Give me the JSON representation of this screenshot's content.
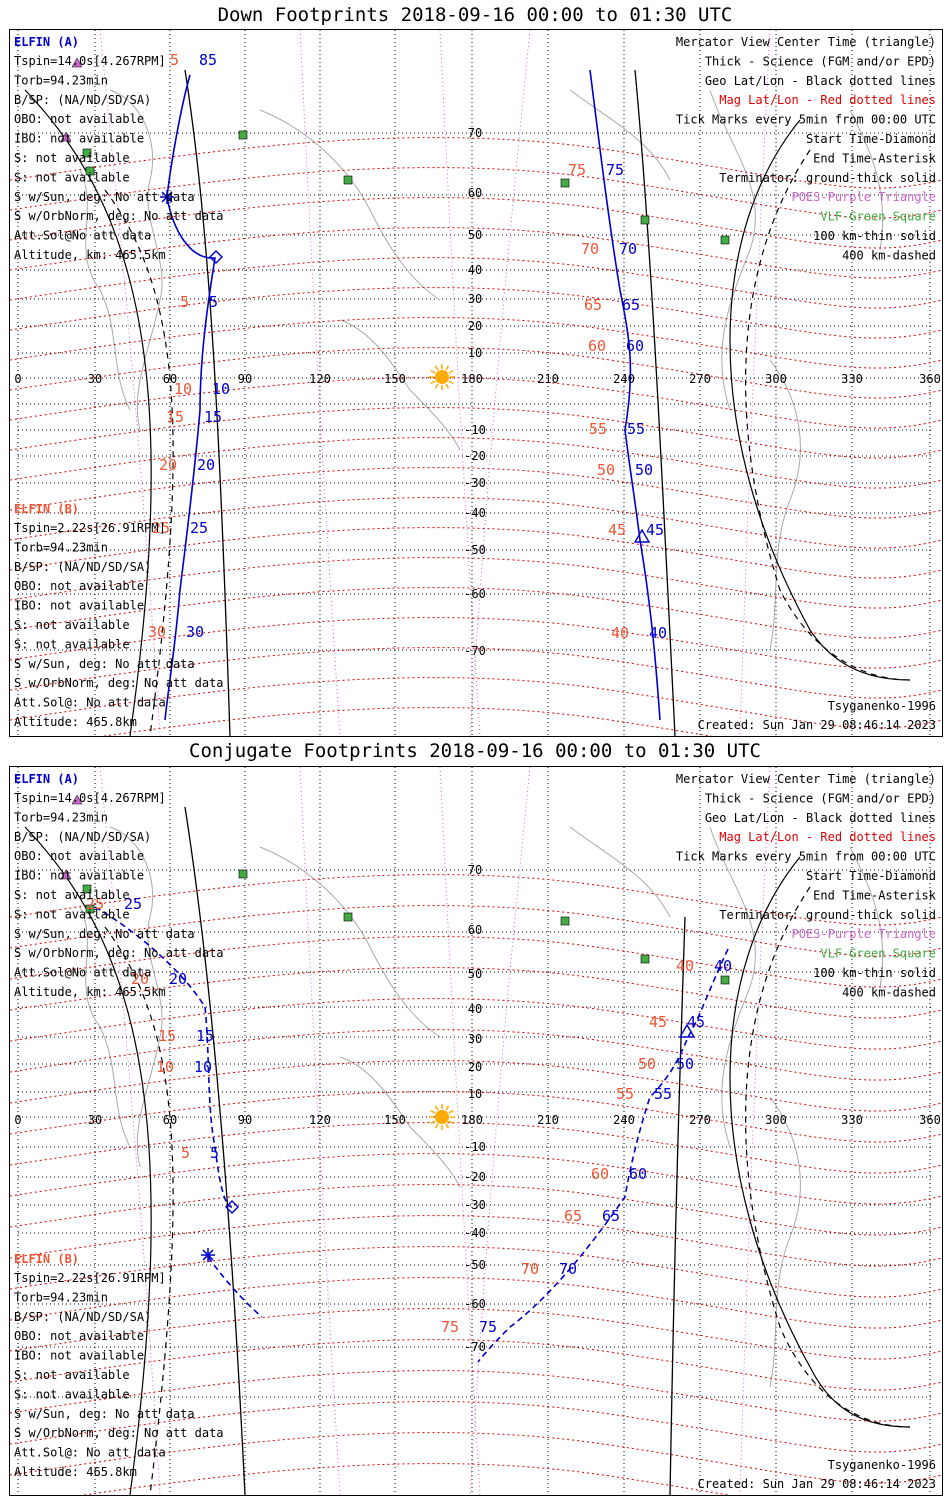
{
  "colors": {
    "blue": "#0000cc",
    "orange": "#ee5533",
    "red": "#dd0000",
    "green": "#44aa44",
    "purple": "#cc66cc",
    "sun": "#ffaa00"
  },
  "panels": [
    {
      "title": "Down Footprints 2018-09-16 00:00 to 01:30 UTC",
      "left_a": {
        "name": "ELFIN (A)",
        "lines": [
          "Tspin=14.0s[4.267RPM]",
          "Torb=94.23min",
          "B/SP: (NA/ND/SD/SA)",
          "OBO: not available",
          "IBO: not available",
          "S: not available",
          "S: not available",
          "S w/Sun, deg: No att data",
          "S w/OrbNorm, deg: No att data",
          "Att.Sol@No att data",
          "Altitude, km: 465.5km"
        ]
      },
      "left_b": {
        "name": "ELFIN (B)",
        "lines": [
          "Tspin=2.22s[26.91RPM]",
          "Torb=94.23min",
          "B/SP: (NA/ND/SD/SA)",
          "OBO: not available",
          "IBO: not available",
          "S: not available",
          "S: not available",
          "S w/Sun, deg: No att data",
          "S w/OrbNorm, deg: No att data",
          "Att.Sol@: No att data",
          "Altitude: 465.8km"
        ]
      },
      "legend": [
        "Mercator View Center Time (triangle)",
        "Thick - Science (FGM and/or EPD)",
        "Geo Lat/Lon - Black dotted lines",
        "Mag Lat/Lon - Red dotted lines",
        "Tick Marks every 5min from 00:00 UTC",
        "Start Time-Diamond",
        "End Time-Asterisk",
        "Terminator: ground-thick solid",
        "POES-Purple Triangle",
        "VLF-Green Square",
        "100 km-thin solid",
        "400 km-dashed"
      ],
      "model": "Tsyganenko-1996",
      "created": "Created: Sun Jan 29 08:46:14 2023"
    },
    {
      "title": "Conjugate Footprints 2018-09-16 00:00 to 01:30 UTC",
      "left_a": {
        "name": "ELFIN (A)",
        "lines": [
          "Tspin=14.0s[4.267RPM]",
          "Torb=94.23min",
          "B/SP: (NA/ND/SD/SA)",
          "OBO: not available",
          "IBO: not available",
          "S: not available",
          "S: not available",
          "S w/Sun, deg: No att data",
          "S w/OrbNorm, deg: No att data",
          "Att.Sol@No att data",
          "Altitude, km: 465.5km"
        ]
      },
      "left_b": {
        "name": "ELFIN (B)",
        "lines": [
          "Tspin=2.22s[26.91RPM]",
          "Torb=94.23min",
          "B/SP: (NA/ND/SD/SA)",
          "OBO: not available",
          "IBO: not available",
          "S: not available",
          "S: not available",
          "S w/Sun, deg: No att data",
          "S w/OrbNorm, deg: No att data",
          "Att.Sol@: No att data",
          "Altitude: 465.8km"
        ]
      },
      "legend": [
        "Mercator View Center Time (triangle)",
        "Thick - Science (FGM and/or EPD)",
        "Geo Lat/Lon - Black dotted lines",
        "Mag Lat/Lon - Red dotted lines",
        "Tick Marks every 5min from 00:00 UTC",
        "Start Time-Diamond",
        "End Time-Asterisk",
        "Terminator: ground-thick solid",
        "POES-Purple Triangle",
        "VLF-Green Square",
        "100 km-thin solid",
        "400 km-dashed"
      ],
      "model": "Tsyganenko-1996",
      "created": "Created: Sun Jan 29 08:46:14 2023"
    }
  ],
  "lon_labels": [
    "0",
    "30",
    "60",
    "90",
    "120",
    "150",
    "180",
    "210",
    "240",
    "270",
    "300",
    "330",
    "360"
  ],
  "lat_labels": [
    "70",
    "60",
    "50",
    "40",
    "30",
    "20",
    "10",
    "-10",
    "-20",
    "-30",
    "-40",
    "-50",
    "-60",
    "-70"
  ],
  "down_ticks_a": [
    "85",
    "5",
    "10",
    "15",
    "20",
    "25",
    "30"
  ],
  "down_ticks_b": [
    "75",
    "70",
    "65",
    "60",
    "55",
    "50",
    "45",
    "40"
  ],
  "down_ticks_a_orange": [
    "5",
    "5",
    "10",
    "15",
    "20",
    "25",
    "30"
  ],
  "down_ticks_b_orange": [
    "75",
    "70",
    "65",
    "60",
    "55",
    "50",
    "45",
    "40"
  ],
  "conj_ticks_a": [
    "25",
    "20",
    "15",
    "10",
    "5"
  ],
  "conj_ticks_b": [
    "40",
    "45",
    "50",
    "55",
    "60",
    "65",
    "70",
    "75"
  ],
  "conj_ticks_a_orange": [
    "25",
    "20",
    "15",
    "10",
    "5"
  ],
  "conj_ticks_b_orange": [
    "40",
    "45",
    "50",
    "55",
    "60",
    "65",
    "70",
    "75"
  ]
}
